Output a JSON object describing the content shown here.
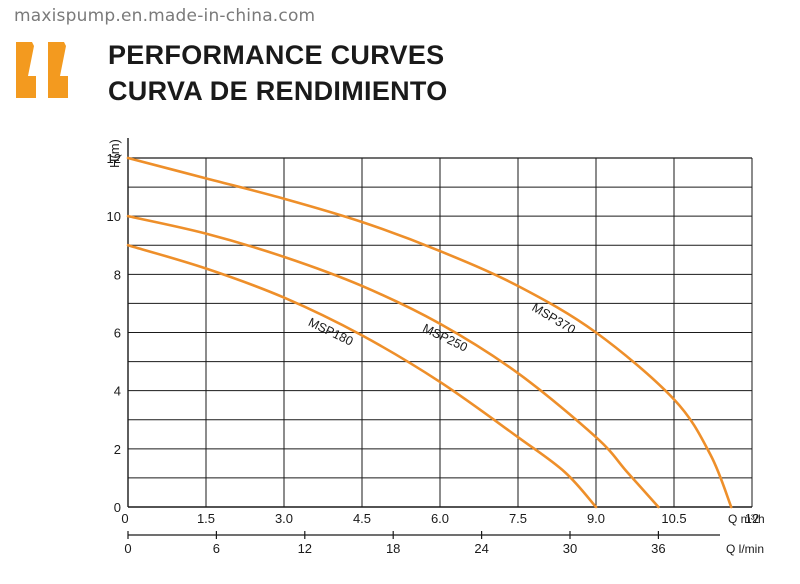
{
  "watermark": "maxispump.en.made-in-china.com",
  "header": {
    "title_line1": "PERFORMANCE CURVES",
    "title_line2": "CURVA DE RENDIMIENTO",
    "quote_icon": "orange-quote-icon"
  },
  "colors": {
    "accent": "#F39A1F",
    "curve": "#EE8F2A",
    "grid": "#1a1a1a"
  },
  "chart_data": {
    "type": "line",
    "ylabel": "H(m)",
    "xlabel": "Q m³/h",
    "xlabel2": "Q l/min",
    "xlim": [
      0,
      12
    ],
    "ylim": [
      0,
      12
    ],
    "grid": true,
    "x_ticks": [
      "0",
      "1.5",
      "3.0",
      "4.5",
      "6.0",
      "7.5",
      "9.0",
      "10.5",
      "12"
    ],
    "x_tick_values": [
      0,
      1.5,
      3,
      4.5,
      6,
      7.5,
      9,
      10.5,
      12
    ],
    "x2_ticks": [
      "0",
      "6",
      "12",
      "18",
      "24",
      "30",
      "36"
    ],
    "x2_tick_values": [
      0,
      6,
      12,
      18,
      24,
      30,
      36
    ],
    "y_ticks": [
      "0",
      "2",
      "4",
      "6",
      "8",
      "10",
      "12"
    ],
    "y_tick_values": [
      0,
      2,
      4,
      6,
      8,
      10,
      12
    ],
    "series": [
      {
        "name": "MSP180",
        "x": [
          0,
          1.5,
          3.0,
          4.5,
          6.0,
          7.5,
          8.4,
          9.0
        ],
        "y": [
          9.0,
          8.2,
          7.2,
          5.9,
          4.3,
          2.4,
          1.2,
          0.0
        ]
      },
      {
        "name": "MSP250",
        "x": [
          0,
          1.5,
          3.0,
          4.5,
          6.0,
          7.5,
          9.0,
          9.6,
          10.2
        ],
        "y": [
          10.0,
          9.4,
          8.6,
          7.6,
          6.3,
          4.6,
          2.4,
          1.2,
          0.0
        ]
      },
      {
        "name": "MSP370",
        "x": [
          0,
          1.5,
          3.0,
          4.5,
          6.0,
          7.5,
          9.0,
          10.5,
          11.2,
          11.6
        ],
        "y": [
          12.0,
          11.3,
          10.6,
          9.8,
          8.8,
          7.6,
          6.0,
          3.7,
          1.8,
          0.0
        ]
      }
    ]
  }
}
